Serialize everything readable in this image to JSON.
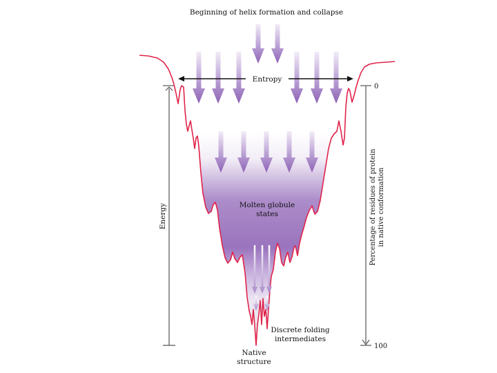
{
  "labels": {
    "top": "Beginning of helix formation and collapse",
    "entropy": "Entropy",
    "energy": "Energy",
    "right_axis_line1": "Percentage of residues of protein",
    "right_axis_line2": "in native conformation",
    "tick_top": "0",
    "tick_bottom": "100",
    "molten_line1": "Molten globule",
    "molten_line2": "states",
    "discrete_line1": "Discrete folding",
    "discrete_line2": "intermediates",
    "native_line1": "Native",
    "native_line2": "structure"
  },
  "colors": {
    "curve": "#e0234a",
    "arrow": "#9b72bf",
    "arrow_light": "#e6dcf0",
    "funnel_gray": "#e6e6e6",
    "molten_purple": "#9a74bd",
    "axis": "#555555"
  },
  "icons": {
    "arrow": "down-arrow-icon",
    "entropy": "double-headed-arrow-icon"
  }
}
